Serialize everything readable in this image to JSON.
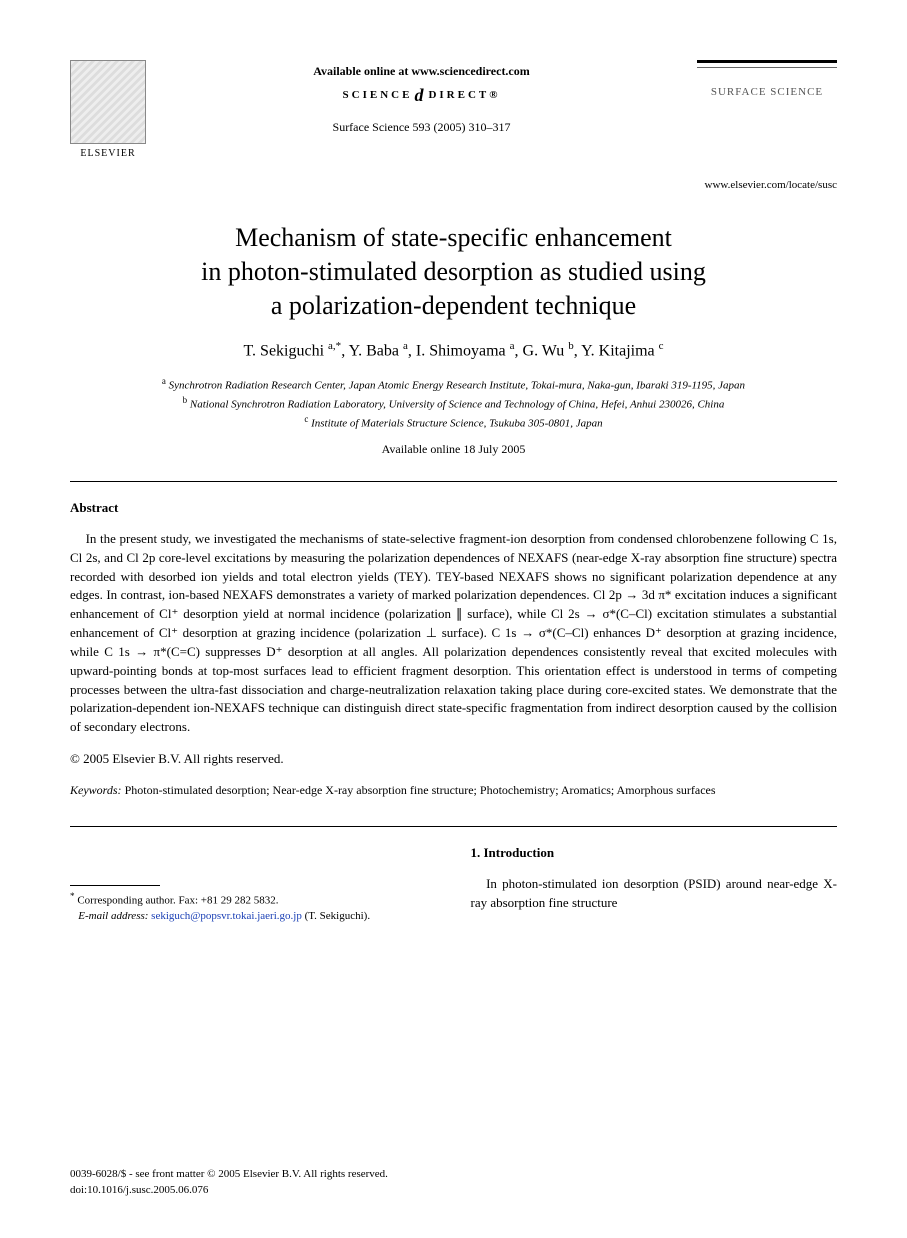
{
  "header": {
    "publisher": "ELSEVIER",
    "available_online": "Available online at www.sciencedirect.com",
    "science_direct": "SCIENCE",
    "science_direct2": "DIRECT®",
    "journal_ref": "Surface Science 593 (2005) 310–317",
    "journal_name": "SURFACE SCIENCE",
    "journal_url": "www.elsevier.com/locate/susc"
  },
  "title_line1": "Mechanism of state-specific enhancement",
  "title_line2": "in photon-stimulated desorption as studied using",
  "title_line3": "a polarization-dependent technique",
  "authors_html": "T. Sekiguchi <sup>a,*</sup>, Y. Baba <sup>a</sup>, I. Shimoyama <sup>a</sup>, G. Wu <sup>b</sup>, Y. Kitajima <sup>c</sup>",
  "affil_a": "Synchrotron Radiation Research Center, Japan Atomic Energy Research Institute, Tokai-mura, Naka-gun, Ibaraki 319-1195, Japan",
  "affil_b": "National Synchrotron Radiation Laboratory, University of Science and Technology of China, Hefei, Anhui 230026, China",
  "affil_c": "Institute of Materials Structure Science, Tsukuba 305-0801, Japan",
  "available_date": "Available online 18 July 2005",
  "abstract_heading": "Abstract",
  "abstract_body": "In the present study, we investigated the mechanisms of state-selective fragment-ion desorption from condensed chlorobenzene following C 1s, Cl 2s, and Cl 2p core-level excitations by measuring the polarization dependences of NEXAFS (near-edge X-ray absorption fine structure) spectra recorded with desorbed ion yields and total electron yields (TEY). TEY-based NEXAFS shows no significant polarization dependence at any edges. In contrast, ion-based NEXAFS demonstrates a variety of marked polarization dependences. Cl 2p → 3d π* excitation induces a significant enhancement of Cl⁺ desorption yield at normal incidence (polarization ∥ surface), while Cl 2s → σ*(C–Cl) excitation stimulates a substantial enhancement of Cl⁺ desorption at grazing incidence (polarization ⊥ surface). C 1s → σ*(C–Cl) enhances D⁺ desorption at grazing incidence, while C 1s → π*(C=C) suppresses D⁺ desorption at all angles. All polarization dependences consistently reveal that excited molecules with upward-pointing bonds at top-most surfaces lead to efficient fragment desorption. This orientation effect is understood in terms of competing processes between the ultra-fast dissociation and charge-neutralization relaxation taking place during core-excited states. We demonstrate that the polarization-dependent ion-NEXAFS technique can distinguish direct state-specific fragmentation from indirect desorption caused by the collision of secondary electrons.",
  "copyright": "© 2005 Elsevier B.V. All rights reserved.",
  "keywords_label": "Keywords:",
  "keywords_text": " Photon-stimulated desorption; Near-edge X-ray absorption fine structure; Photochemistry; Aromatics; Amorphous surfaces",
  "corresponding": {
    "label": "Corresponding author. Fax: +81 29 282 5832.",
    "email_label": "E-mail address:",
    "email": "sekiguch@popsvr.tokai.jaeri.go.jp",
    "email_suffix": " (T. Sekiguchi)."
  },
  "section1_heading": "1. Introduction",
  "section1_body": "In photon-stimulated ion desorption (PSID) around near-edge X-ray absorption fine structure",
  "footer": {
    "issn": "0039-6028/$ - see front matter © 2005 Elsevier B.V. All rights reserved.",
    "doi": "doi:10.1016/j.susc.2005.06.076"
  },
  "colors": {
    "text": "#000000",
    "link": "#1a3fb5",
    "gray": "#555555",
    "bg": "#ffffff"
  },
  "fonts": {
    "body_size_pt": 10,
    "title_size_pt": 20
  }
}
